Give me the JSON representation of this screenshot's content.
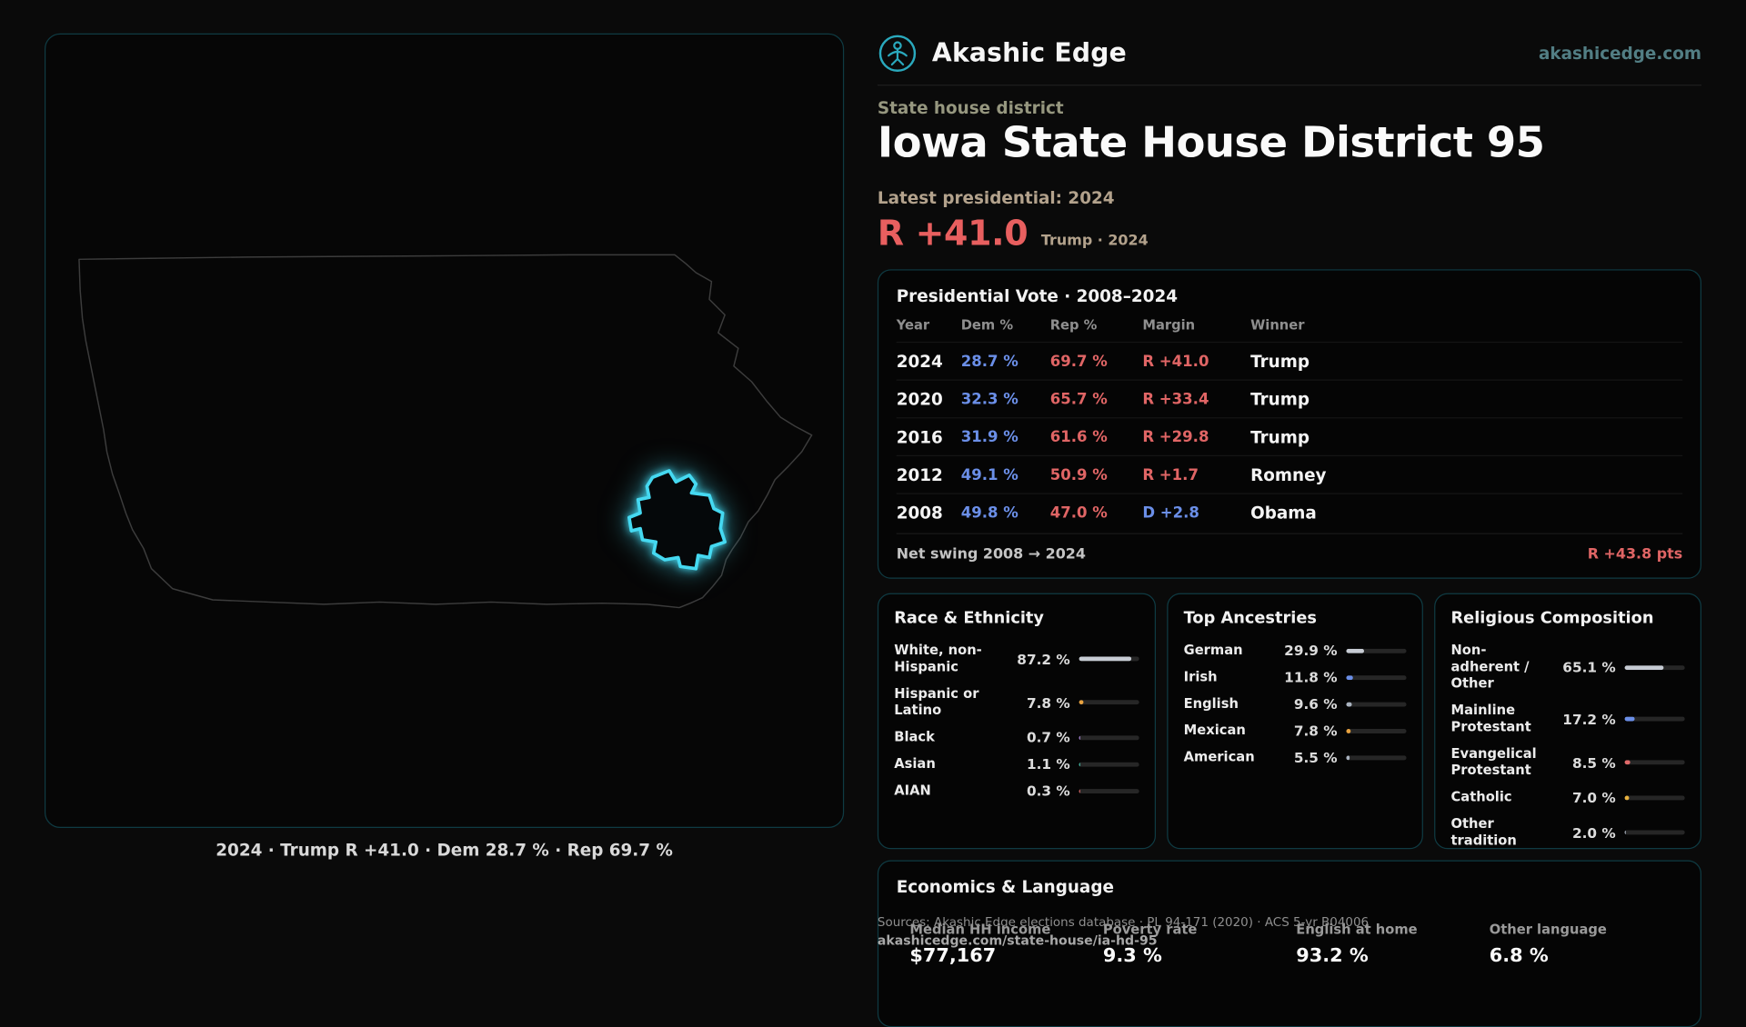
{
  "brand": {
    "name": "Akashic Edge",
    "domain": "akashicedge.com"
  },
  "map": {
    "caption": "2024 · Trump R +41.0 · Dem 28.7 % · Rep 69.7 %"
  },
  "header": {
    "kicker": "State house district",
    "title": "Iowa State House District 95",
    "latest_label": "Latest presidential: 2024",
    "margin_value": "R +41.0",
    "margin_context": "Trump · 2024"
  },
  "presidential": {
    "title": "Presidential Vote · 2008–2024",
    "columns": {
      "year": "Year",
      "dem": "Dem %",
      "rep": "Rep %",
      "margin": "Margin",
      "winner": "Winner"
    },
    "rows": [
      {
        "year": "2024",
        "dem": "28.7 %",
        "rep": "69.7 %",
        "margin": "R +41.0",
        "winner": "Trump"
      },
      {
        "year": "2020",
        "dem": "32.3 %",
        "rep": "65.7 %",
        "margin": "R +33.4",
        "winner": "Trump"
      },
      {
        "year": "2016",
        "dem": "31.9 %",
        "rep": "61.6 %",
        "margin": "R +29.8",
        "winner": "Trump"
      },
      {
        "year": "2012",
        "dem": "49.1 %",
        "rep": "50.9 %",
        "margin": "R +1.7",
        "winner": "Romney"
      },
      {
        "year": "2008",
        "dem": "49.8 %",
        "rep": "47.0 %",
        "margin": "D +2.8",
        "winner": "Obama"
      }
    ],
    "net_swing_label": "Net swing 2008 → 2024",
    "net_swing_value": "R +43.8 pts"
  },
  "race": {
    "title": "Race & Ethnicity",
    "rows": [
      {
        "label": "White, non-Hispanic",
        "value": "87.2 %",
        "pct": 87.2,
        "color": "#c7ccd4"
      },
      {
        "label": "Hispanic or Latino",
        "value": "7.8 %",
        "pct": 7.8,
        "color": "#e8a23f"
      },
      {
        "label": "Black",
        "value": "0.7 %",
        "pct": 0.7,
        "color": "#b48ce8"
      },
      {
        "label": "Asian",
        "value": "1.1 %",
        "pct": 1.1,
        "color": "#46c8b2"
      },
      {
        "label": "AIAN",
        "value": "0.3 %",
        "pct": 0.3,
        "color": "#e06a6a"
      }
    ]
  },
  "ancestries": {
    "title": "Top Ancestries",
    "rows": [
      {
        "label": "German",
        "value": "29.9 %",
        "pct": 29.9,
        "color": "#c7ccd4"
      },
      {
        "label": "Irish",
        "value": "11.8 %",
        "pct": 11.8,
        "color": "#6b8fe8"
      },
      {
        "label": "English",
        "value": "9.6 %",
        "pct": 9.6,
        "color": "#aab3c0"
      },
      {
        "label": "Mexican",
        "value": "7.8 %",
        "pct": 7.8,
        "color": "#e8a23f"
      },
      {
        "label": "American",
        "value": "5.5 %",
        "pct": 5.5,
        "color": "#aab3c0"
      }
    ]
  },
  "religion": {
    "title": "Religious Composition",
    "rows": [
      {
        "label": "Non-adherent / Other",
        "value": "65.1 %",
        "pct": 65.1,
        "color": "#c7ccd4"
      },
      {
        "label": "Mainline Protestant",
        "value": "17.2 %",
        "pct": 17.2,
        "color": "#6b8fe8"
      },
      {
        "label": "Evangelical Protestant",
        "value": "8.5 %",
        "pct": 8.5,
        "color": "#e06a6a"
      },
      {
        "label": "Catholic",
        "value": "7.0 %",
        "pct": 7.0,
        "color": "#e8b23f"
      },
      {
        "label": "Other tradition",
        "value": "2.0 %",
        "pct": 2.0,
        "color": "#aab3c0"
      }
    ]
  },
  "economics": {
    "title": "Economics & Language",
    "stats": [
      {
        "label": "Median HH income",
        "value": "$77,167"
      },
      {
        "label": "Poverty rate",
        "value": "9.3 %"
      },
      {
        "label": "English at home",
        "value": "93.2 %"
      },
      {
        "label": "Other language",
        "value": "6.8 %"
      }
    ]
  },
  "footer": {
    "sources": "Sources: Akashic Edge elections database · PL 94-171 (2020) · ACS 5-yr B04006",
    "permalink": "akashicedge.com/state-house/ia-hd-95"
  }
}
